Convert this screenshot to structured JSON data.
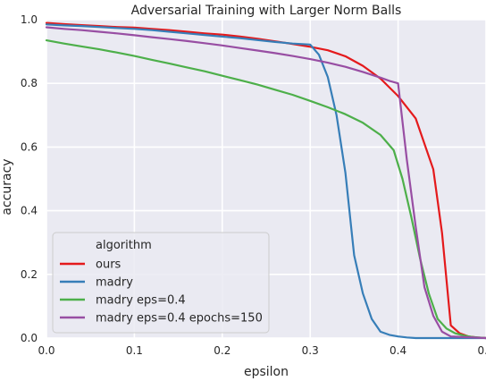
{
  "chart_data": {
    "type": "line",
    "title": "Adversarial Training with Larger Norm Balls",
    "xlabel": "epsilon",
    "ylabel": "accuracy",
    "xlim": [
      0,
      0.5
    ],
    "ylim": [
      0,
      1.0
    ],
    "xticks": [
      "0.0",
      "0.1",
      "0.2",
      "0.3",
      "0.4",
      "0.5"
    ],
    "yticks": [
      "0.0",
      "0.2",
      "0.4",
      "0.6",
      "0.8",
      "1.0"
    ],
    "grid": true,
    "legend": {
      "title": "algorithm",
      "placement": "lower-left"
    },
    "series": [
      {
        "name": "ours",
        "color": "#e41a1c",
        "x": [
          0.0,
          0.02,
          0.04,
          0.06,
          0.08,
          0.1,
          0.12,
          0.14,
          0.16,
          0.18,
          0.2,
          0.22,
          0.24,
          0.26,
          0.28,
          0.3,
          0.32,
          0.34,
          0.36,
          0.38,
          0.4,
          0.42,
          0.44,
          0.45,
          0.46,
          0.47,
          0.48,
          0.49,
          0.5
        ],
        "y": [
          0.99,
          0.986,
          0.983,
          0.98,
          0.977,
          0.975,
          0.971,
          0.967,
          0.962,
          0.957,
          0.953,
          0.947,
          0.94,
          0.932,
          0.924,
          0.915,
          0.904,
          0.885,
          0.855,
          0.815,
          0.76,
          0.69,
          0.53,
          0.33,
          0.04,
          0.015,
          0.005,
          0.002,
          0.0
        ]
      },
      {
        "name": "madry",
        "color": "#377eb8",
        "x": [
          0.0,
          0.02,
          0.04,
          0.06,
          0.08,
          0.1,
          0.12,
          0.14,
          0.16,
          0.18,
          0.2,
          0.22,
          0.24,
          0.26,
          0.28,
          0.3,
          0.31,
          0.32,
          0.33,
          0.34,
          0.35,
          0.36,
          0.37,
          0.38,
          0.39,
          0.4,
          0.41,
          0.42,
          0.43,
          0.44,
          0.45,
          0.5
        ],
        "y": [
          0.985,
          0.982,
          0.98,
          0.977,
          0.974,
          0.971,
          0.967,
          0.962,
          0.957,
          0.952,
          0.947,
          0.942,
          0.936,
          0.93,
          0.925,
          0.922,
          0.89,
          0.82,
          0.7,
          0.52,
          0.26,
          0.14,
          0.06,
          0.02,
          0.01,
          0.005,
          0.002,
          0.0,
          0.0,
          0.0,
          0.0,
          0.0
        ]
      },
      {
        "name": "madry eps=0.4",
        "color": "#4daf4a",
        "x": [
          0.0,
          0.02,
          0.04,
          0.06,
          0.08,
          0.1,
          0.12,
          0.14,
          0.16,
          0.18,
          0.2,
          0.22,
          0.24,
          0.26,
          0.28,
          0.3,
          0.32,
          0.34,
          0.36,
          0.38,
          0.395,
          0.405,
          0.415,
          0.425,
          0.435,
          0.445,
          0.455,
          0.465,
          0.475,
          0.485,
          0.5
        ],
        "y": [
          0.935,
          0.925,
          0.916,
          0.907,
          0.897,
          0.886,
          0.874,
          0.862,
          0.85,
          0.838,
          0.824,
          0.81,
          0.796,
          0.78,
          0.764,
          0.745,
          0.725,
          0.703,
          0.676,
          0.638,
          0.59,
          0.5,
          0.38,
          0.25,
          0.14,
          0.06,
          0.03,
          0.015,
          0.008,
          0.003,
          0.0
        ]
      },
      {
        "name": "madry eps=0.4 epochs=150",
        "color": "#984ea3",
        "x": [
          0.0,
          0.02,
          0.04,
          0.06,
          0.08,
          0.1,
          0.12,
          0.14,
          0.16,
          0.18,
          0.2,
          0.22,
          0.24,
          0.26,
          0.28,
          0.3,
          0.32,
          0.34,
          0.36,
          0.38,
          0.39,
          0.4,
          0.41,
          0.42,
          0.43,
          0.44,
          0.45,
          0.46,
          0.5
        ],
        "y": [
          0.976,
          0.971,
          0.967,
          0.962,
          0.957,
          0.951,
          0.945,
          0.939,
          0.933,
          0.926,
          0.919,
          0.911,
          0.903,
          0.895,
          0.886,
          0.876,
          0.865,
          0.852,
          0.836,
          0.818,
          0.808,
          0.8,
          0.56,
          0.35,
          0.16,
          0.07,
          0.02,
          0.005,
          0.0
        ]
      }
    ]
  }
}
